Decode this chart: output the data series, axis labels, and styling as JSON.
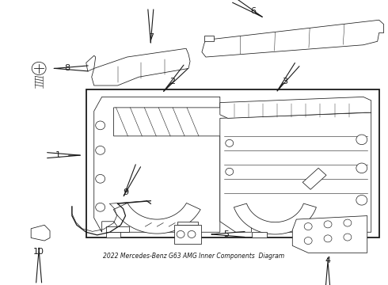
{
  "title": "2022 Mercedes-Benz G63 AMG Inner Components  Diagram",
  "bg_color": "#ffffff",
  "line_color": "#1a1a1a",
  "figsize": [
    4.9,
    3.6
  ],
  "dpi": 100
}
